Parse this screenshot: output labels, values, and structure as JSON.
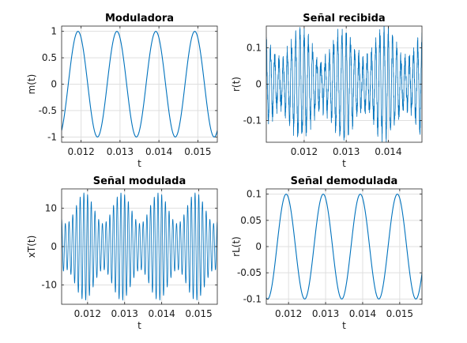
{
  "colors": {
    "line": "#0072bd",
    "grid": "#dfdfdf",
    "axes": "#262626"
  },
  "chart_data": [
    {
      "type": "line",
      "title": "Moduladora",
      "xlabel": "t",
      "ylabel": "m(t)",
      "xlim": [
        0.0115,
        0.0155
      ],
      "ylim": [
        -1.1,
        1.1
      ],
      "xticks": [
        0.012,
        0.013,
        0.014,
        0.015
      ],
      "xticklabels": [
        "0.012",
        "0.013",
        "0.014",
        "0.015"
      ],
      "yticks": [
        -1,
        -0.5,
        0,
        0.5,
        1
      ],
      "yticklabels": [
        "-1",
        "-0.5",
        "0",
        "0.5",
        "1"
      ],
      "grid": true,
      "signal": {
        "kind": "cosine",
        "amplitude": 1,
        "frequency_hz": 1000,
        "phase_rad": 0.5
      }
    },
    {
      "type": "line",
      "title": "Señal recibida",
      "xlabel": "t",
      "ylabel": "r(t)",
      "xlim": [
        0.0111,
        0.0148
      ],
      "ylim": [
        -0.16,
        0.16
      ],
      "xticks": [
        0.012,
        0.013,
        0.014
      ],
      "xticklabels": [
        "0.012",
        "0.013",
        "0.014"
      ],
      "yticks": [
        -0.1,
        0,
        0.1
      ],
      "yticklabels": [
        "-0.1",
        "0",
        "0.1"
      ],
      "grid": true,
      "signal": {
        "kind": "am",
        "amplitude": 0.1,
        "index": 0.4,
        "frequency_hz": 1000,
        "phase_rad": 0.5,
        "carrier_hz": 10000,
        "noise": 0.025
      }
    },
    {
      "type": "line",
      "title": "Señal modulada",
      "xlabel": "t",
      "ylabel": "xT(t)",
      "xlim": [
        0.0113,
        0.0155
      ],
      "ylim": [
        -15,
        15
      ],
      "xticks": [
        0.012,
        0.013,
        0.014,
        0.015
      ],
      "xticklabels": [
        "0.012",
        "0.013",
        "0.014",
        "0.015"
      ],
      "yticks": [
        -10,
        0,
        10
      ],
      "yticklabels": [
        "-10",
        "0",
        "10"
      ],
      "grid": true,
      "signal": {
        "kind": "am",
        "amplitude": 10,
        "index": 0.4,
        "frequency_hz": 1000,
        "phase_rad": 0.5,
        "carrier_hz": 10000,
        "noise": 0
      }
    },
    {
      "type": "line",
      "title": "Señal demodulada",
      "xlabel": "t",
      "ylabel": "rL(t)",
      "xlim": [
        0.0114,
        0.0156
      ],
      "ylim": [
        -0.11,
        0.11
      ],
      "xticks": [
        0.012,
        0.013,
        0.014,
        0.015
      ],
      "xticklabels": [
        "0.012",
        "0.013",
        "0.014",
        "0.015"
      ],
      "yticks": [
        -0.1,
        -0.05,
        0,
        0.05,
        0.1
      ],
      "yticklabels": [
        "-0.1",
        "-0.05",
        "0",
        "0.05",
        "0.1"
      ],
      "grid": true,
      "signal": {
        "kind": "cosine",
        "amplitude": 0.1,
        "frequency_hz": 1000,
        "phase_rad": 0.4
      }
    }
  ]
}
